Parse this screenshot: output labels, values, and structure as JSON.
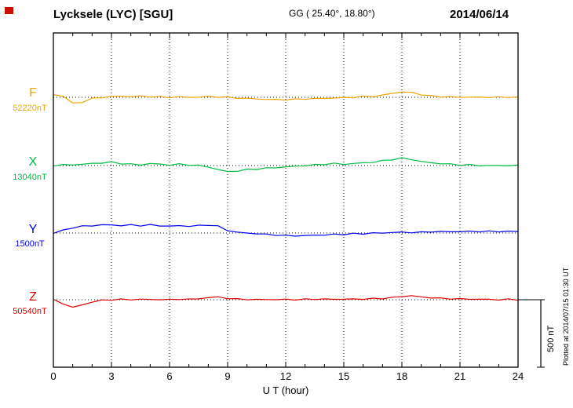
{
  "header": {
    "station": "Lycksele (LYC)  [SGU]",
    "coords": "GG ( 25.40°,  18.80°)",
    "date": "2014/06/14"
  },
  "axis": {
    "xlabel": "U T (hour)",
    "ticks": [
      "0",
      "3",
      "6",
      "9",
      "12",
      "15",
      "18",
      "21",
      "24"
    ]
  },
  "scale_bar": {
    "label": "500 nT",
    "nT": 500
  },
  "footer_note": "Plotted at 2014/07/15 01:30 UT",
  "chart_data": {
    "type": "line",
    "title": "Lycksele (LYC) [SGU] magnetogram 2014/06/14",
    "xlabel": "U T (hour)",
    "x_unit": "hour",
    "x_range": [
      0,
      24
    ],
    "x_ticks": [
      0,
      3,
      6,
      9,
      12,
      15,
      18,
      21,
      24
    ],
    "x_step_hours": 0.5,
    "grid": "dotted-vertical-every-3h",
    "legend_position": "left-of-each-trace",
    "series": [
      {
        "name": "F",
        "base_label": "52220nT",
        "baseline_nT": 52220,
        "color": "#f0a500",
        "offsets_nT": [
          20,
          10,
          -45,
          -35,
          -10,
          0,
          5,
          8,
          5,
          8,
          5,
          3,
          0,
          3,
          0,
          2,
          5,
          3,
          0,
          -5,
          -8,
          -12,
          -15,
          -18,
          -18,
          -15,
          -12,
          -10,
          -8,
          -5,
          -3,
          0,
          5,
          8,
          15,
          30,
          40,
          35,
          20,
          10,
          5,
          3,
          0,
          2,
          0,
          2,
          0,
          2,
          0
        ]
      },
      {
        "name": "X",
        "base_label": "13040nT",
        "baseline_nT": 13040,
        "color": "#00bb44",
        "offsets_nT": [
          0,
          5,
          5,
          10,
          15,
          20,
          25,
          15,
          10,
          5,
          15,
          10,
          5,
          10,
          5,
          0,
          -10,
          -30,
          -45,
          -40,
          -30,
          -25,
          -20,
          -15,
          -10,
          -5,
          0,
          5,
          10,
          15,
          10,
          15,
          20,
          25,
          35,
          45,
          55,
          45,
          30,
          20,
          15,
          10,
          5,
          5,
          0,
          0,
          0,
          0,
          0
        ]
      },
      {
        "name": "Y",
        "base_label": "1500nT",
        "baseline_nT": 1500,
        "color": "#0000ee",
        "offsets_nT": [
          0,
          20,
          40,
          50,
          55,
          60,
          60,
          55,
          60,
          55,
          60,
          55,
          50,
          55,
          50,
          55,
          60,
          50,
          20,
          5,
          0,
          -5,
          -10,
          -15,
          -20,
          -20,
          -20,
          -15,
          -15,
          -10,
          -10,
          -5,
          -5,
          0,
          0,
          5,
          5,
          5,
          5,
          10,
          10,
          10,
          10,
          12,
          12,
          12,
          12,
          12,
          12
        ]
      },
      {
        "name": "Z",
        "base_label": "50540nT",
        "baseline_nT": 50540,
        "color": "#dd0000",
        "offsets_nT": [
          0,
          -30,
          -55,
          -40,
          -15,
          -5,
          0,
          3,
          0,
          5,
          0,
          3,
          0,
          5,
          3,
          8,
          15,
          20,
          10,
          5,
          3,
          0,
          3,
          0,
          3,
          0,
          3,
          5,
          3,
          5,
          3,
          5,
          5,
          8,
          10,
          15,
          25,
          30,
          20,
          15,
          10,
          8,
          5,
          5,
          3,
          3,
          0,
          3,
          0
        ]
      }
    ]
  }
}
